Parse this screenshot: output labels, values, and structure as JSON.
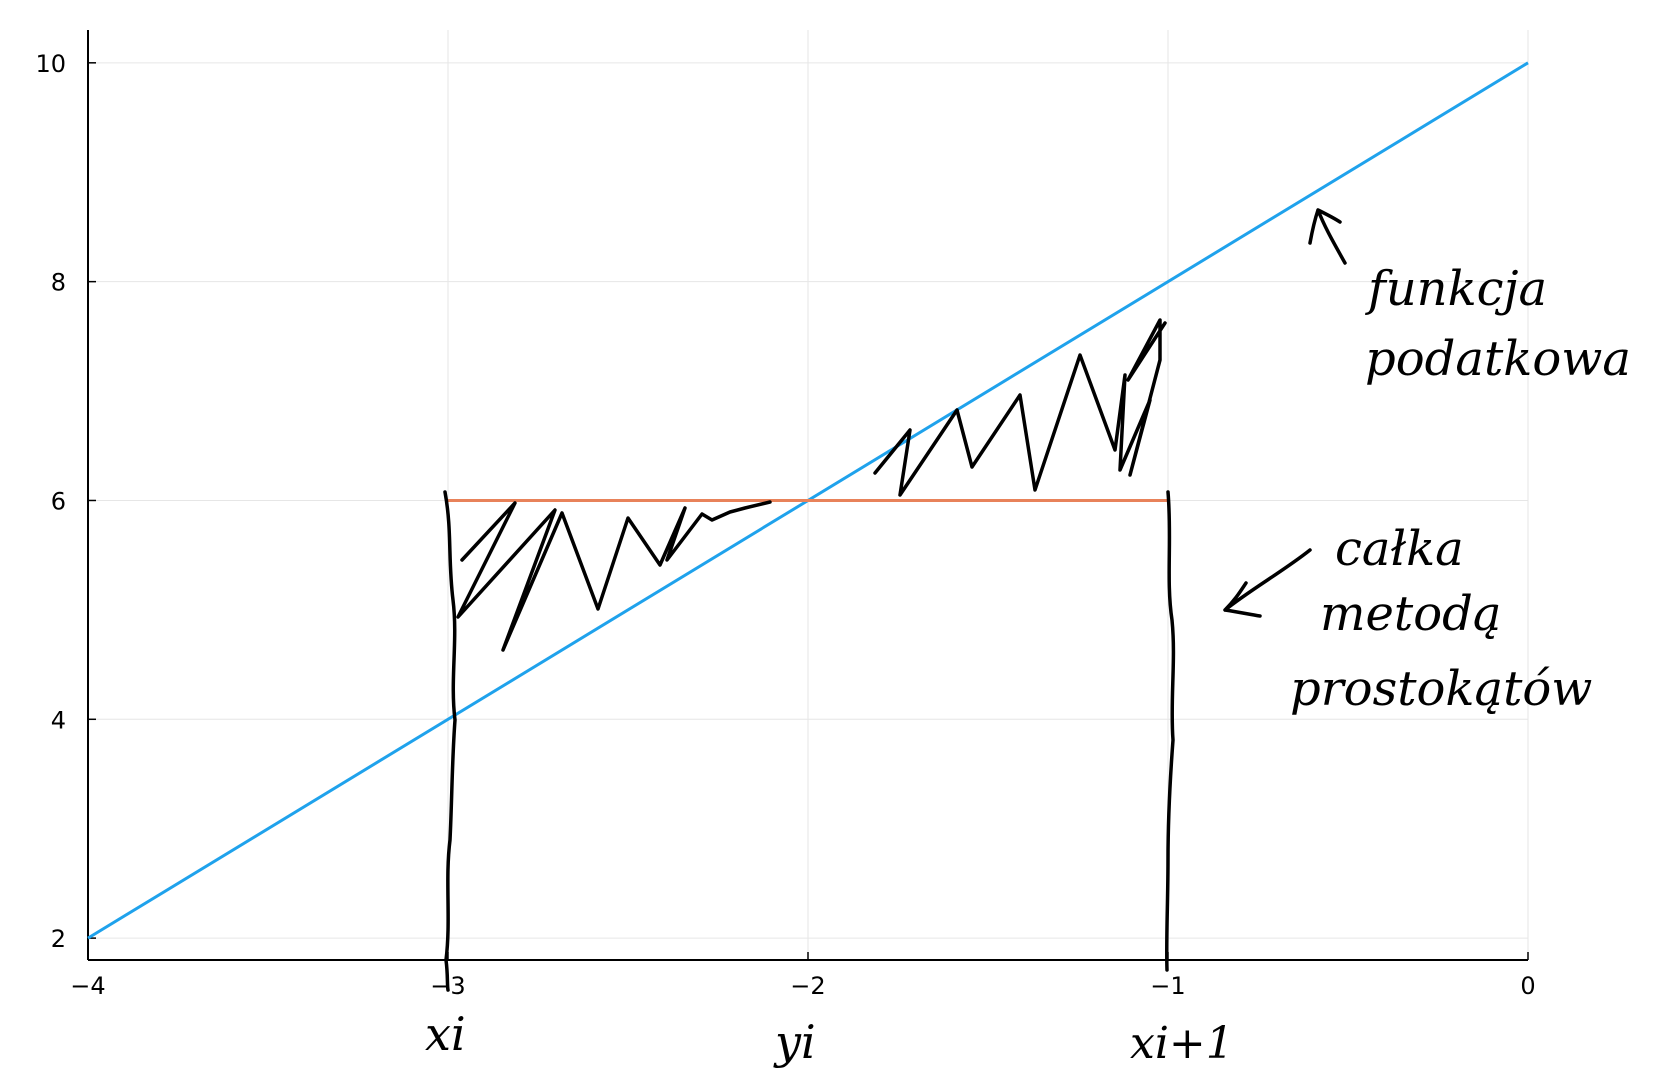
{
  "chart_data": {
    "type": "line",
    "xlim": [
      -4,
      0
    ],
    "ylim": [
      1.8,
      10.3
    ],
    "x_ticks": [
      -4,
      -3,
      -2,
      -1,
      0
    ],
    "x_tick_labels": [
      "−4",
      "−3",
      "−2",
      "−1",
      "0"
    ],
    "y_ticks": [
      2,
      4,
      6,
      8,
      10
    ],
    "y_tick_labels": [
      "2",
      "4",
      "6",
      "8",
      "10"
    ],
    "grid": true,
    "legend": "none",
    "series": [
      {
        "x": [
          -4,
          0
        ],
        "y": [
          2,
          10
        ],
        "color": "#1fa2ec"
      },
      {
        "x": [
          -3,
          -1
        ],
        "y": [
          6,
          6
        ],
        "color": "#e8825a"
      }
    ],
    "annotations": {
      "x_i": "xi",
      "y_i": "yi",
      "x_i1": "xi+1",
      "function_label_line1": "funkcja",
      "function_label_line2": "podatkowa",
      "integral_label_line1": "całka",
      "integral_label_line2": "metodą",
      "integral_label_line3": "prostokątów"
    }
  }
}
